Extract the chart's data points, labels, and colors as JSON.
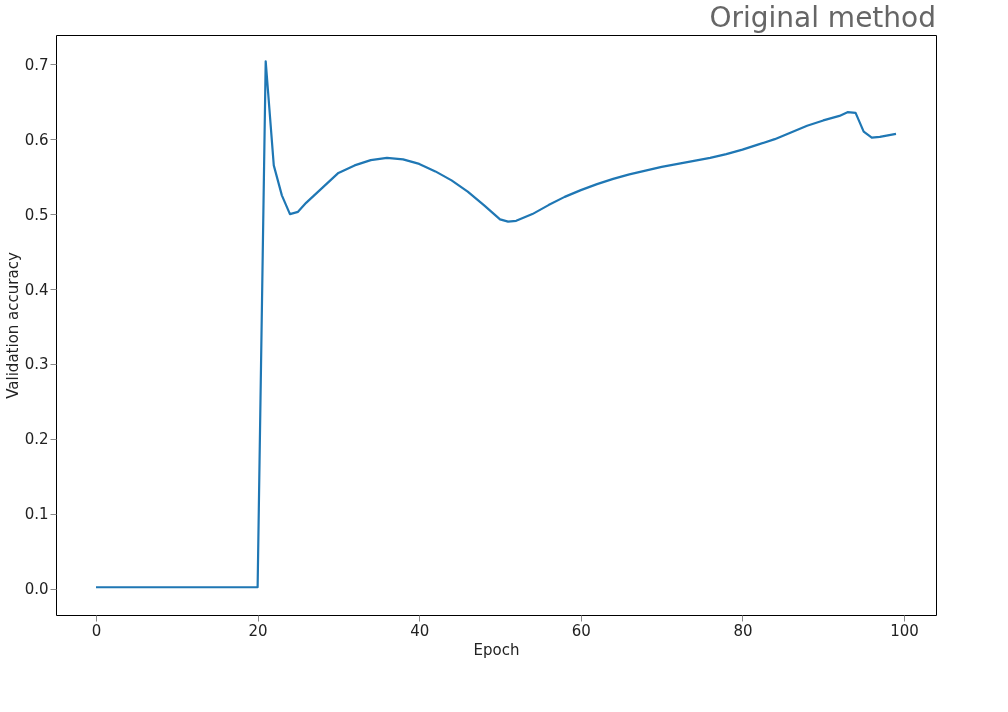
{
  "chart_data": {
    "type": "line",
    "title": "Original method",
    "xlabel": "Epoch",
    "ylabel": "Validation accuracy",
    "x": [
      0,
      1,
      2,
      3,
      4,
      5,
      6,
      7,
      8,
      9,
      10,
      11,
      12,
      13,
      14,
      15,
      16,
      17,
      18,
      19,
      20,
      21,
      22,
      23,
      24,
      25,
      26,
      28,
      30,
      32,
      34,
      36,
      38,
      40,
      42,
      44,
      46,
      48,
      50,
      51,
      52,
      54,
      56,
      58,
      60,
      62,
      64,
      66,
      68,
      70,
      72,
      74,
      76,
      78,
      80,
      82,
      84,
      86,
      88,
      90,
      92,
      93,
      94,
      95,
      96,
      97,
      98,
      99
    ],
    "series": [
      {
        "color": "#1f77b4",
        "values": [
          0.002,
          0.002,
          0.002,
          0.002,
          0.002,
          0.002,
          0.002,
          0.002,
          0.002,
          0.002,
          0.002,
          0.002,
          0.002,
          0.002,
          0.002,
          0.002,
          0.002,
          0.002,
          0.002,
          0.002,
          0.002,
          0.704,
          0.565,
          0.525,
          0.5,
          0.503,
          0.515,
          0.535,
          0.555,
          0.565,
          0.572,
          0.575,
          0.573,
          0.567,
          0.557,
          0.545,
          0.53,
          0.512,
          0.493,
          0.49,
          0.491,
          0.5,
          0.512,
          0.523,
          0.532,
          0.54,
          0.547,
          0.553,
          0.558,
          0.563,
          0.567,
          0.571,
          0.575,
          0.58,
          0.586,
          0.593,
          0.6,
          0.609,
          0.618,
          0.625,
          0.631,
          0.636,
          0.635,
          0.61,
          0.602,
          0.603,
          0.605,
          0.607
        ]
      }
    ],
    "xlim": [
      -4.95,
      103.95
    ],
    "ylim": [
      -0.035,
      0.739
    ],
    "xticks": [
      0,
      20,
      40,
      60,
      80,
      100
    ],
    "yticks": [
      {
        "value": 0,
        "label": "0.0"
      },
      {
        "value": 0.1,
        "label": "0.1"
      },
      {
        "value": 0.2,
        "label": "0.2"
      },
      {
        "value": 0.3,
        "label": "0.3"
      },
      {
        "value": 0.4,
        "label": "0.4"
      },
      {
        "value": 0.5,
        "label": "0.5"
      },
      {
        "value": 0.6,
        "label": "0.6"
      },
      {
        "value": 0.7,
        "label": "0.7"
      }
    ],
    "grid": false,
    "legend": false,
    "marker": "none",
    "line_style": "solid"
  }
}
